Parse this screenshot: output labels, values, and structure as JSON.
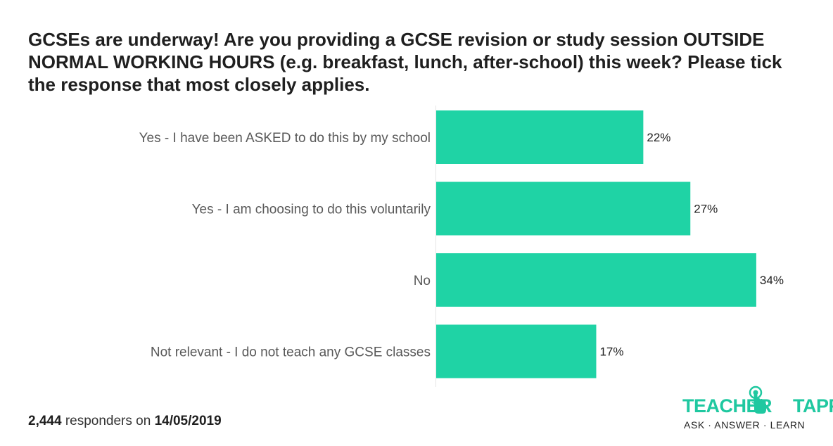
{
  "chart_data": {
    "type": "bar",
    "orientation": "horizontal",
    "title": "GCSEs are underway! Are you providing a GCSE revision or study session OUTSIDE NORMAL WORKING HOURS (e.g. breakfast, lunch, after-school) this week? Please tick the response that most closely applies.",
    "categories": [
      "Yes - I have been ASKED to do this by my school",
      "Yes - I am choosing to do this voluntarily",
      "No",
      "Not relevant - I do not teach any GCSE classes"
    ],
    "values": [
      22,
      27,
      34,
      17
    ],
    "value_labels": [
      "22%",
      "27%",
      "34%",
      "17%"
    ],
    "unit": "%",
    "xlim": [
      0,
      40
    ],
    "grid": false,
    "bar_color": "#1fd3a5"
  },
  "footer": {
    "responders_count": "2,444",
    "responders_text": " responders on ",
    "date": "14/05/2019"
  },
  "logo": {
    "name_left": "TEACHER",
    "name_right": "TAPP",
    "tagline": "ASK · ANSWER · LEARN",
    "color": "#1fc8a0"
  }
}
